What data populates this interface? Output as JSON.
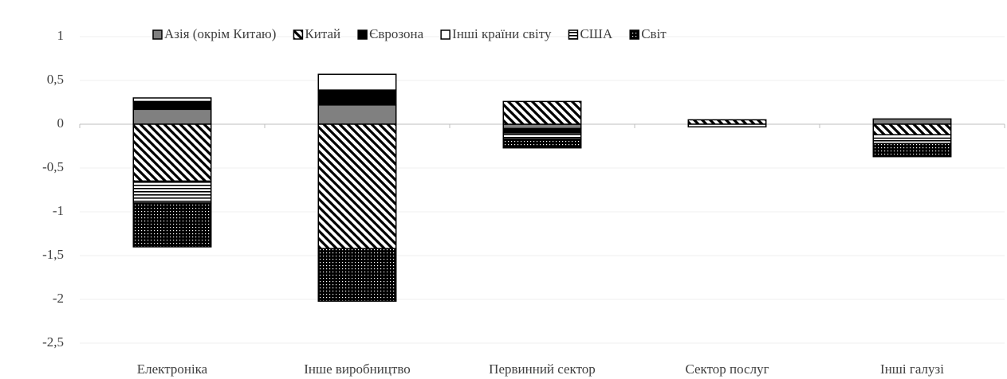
{
  "chart_data": {
    "type": "stacked_bar",
    "categories": [
      "Електроніка",
      "Інше виробництво",
      "Первинний сектор",
      "Сектор послуг",
      "Інші галузі"
    ],
    "series": [
      {
        "name": "Азія (окрім Китаю)",
        "color": "#808080",
        "pattern": "solid",
        "values": [
          0.17,
          0.22,
          -0.05,
          0,
          0.06
        ]
      },
      {
        "name": "Китай",
        "color": "#000000",
        "pattern": "diagonal",
        "values": [
          -0.65,
          -1.42,
          0.26,
          0.05,
          -0.12
        ]
      },
      {
        "name": "Єврозона",
        "color": "#000000",
        "pattern": "solid",
        "values": [
          0.09,
          0.17,
          -0.05,
          0,
          0
        ]
      },
      {
        "name": "Інші країни світу",
        "color": "#ffffff",
        "pattern": "solid",
        "values": [
          0.04,
          0.18,
          0,
          -0.03,
          -0.04
        ]
      },
      {
        "name": "США",
        "color": "#000000",
        "pattern": "horizontal",
        "values": [
          -0.25,
          0,
          -0.07,
          0,
          -0.06
        ]
      },
      {
        "name": "Світ",
        "color": "#000000",
        "pattern": "dots",
        "values": [
          -0.5,
          -0.6,
          -0.1,
          0,
          -0.15
        ]
      }
    ],
    "ylim": [
      -2.5,
      1
    ],
    "yticks": [
      1,
      {
        "value": 0.5,
        "label": "0,5"
      },
      0,
      {
        "value": -0.5,
        "label": "-0,5"
      },
      -1,
      {
        "value": -1.5,
        "label": "-1,5"
      },
      -2,
      {
        "value": -2.5,
        "label": "-2,5"
      }
    ],
    "grid": true,
    "legend": "top"
  }
}
